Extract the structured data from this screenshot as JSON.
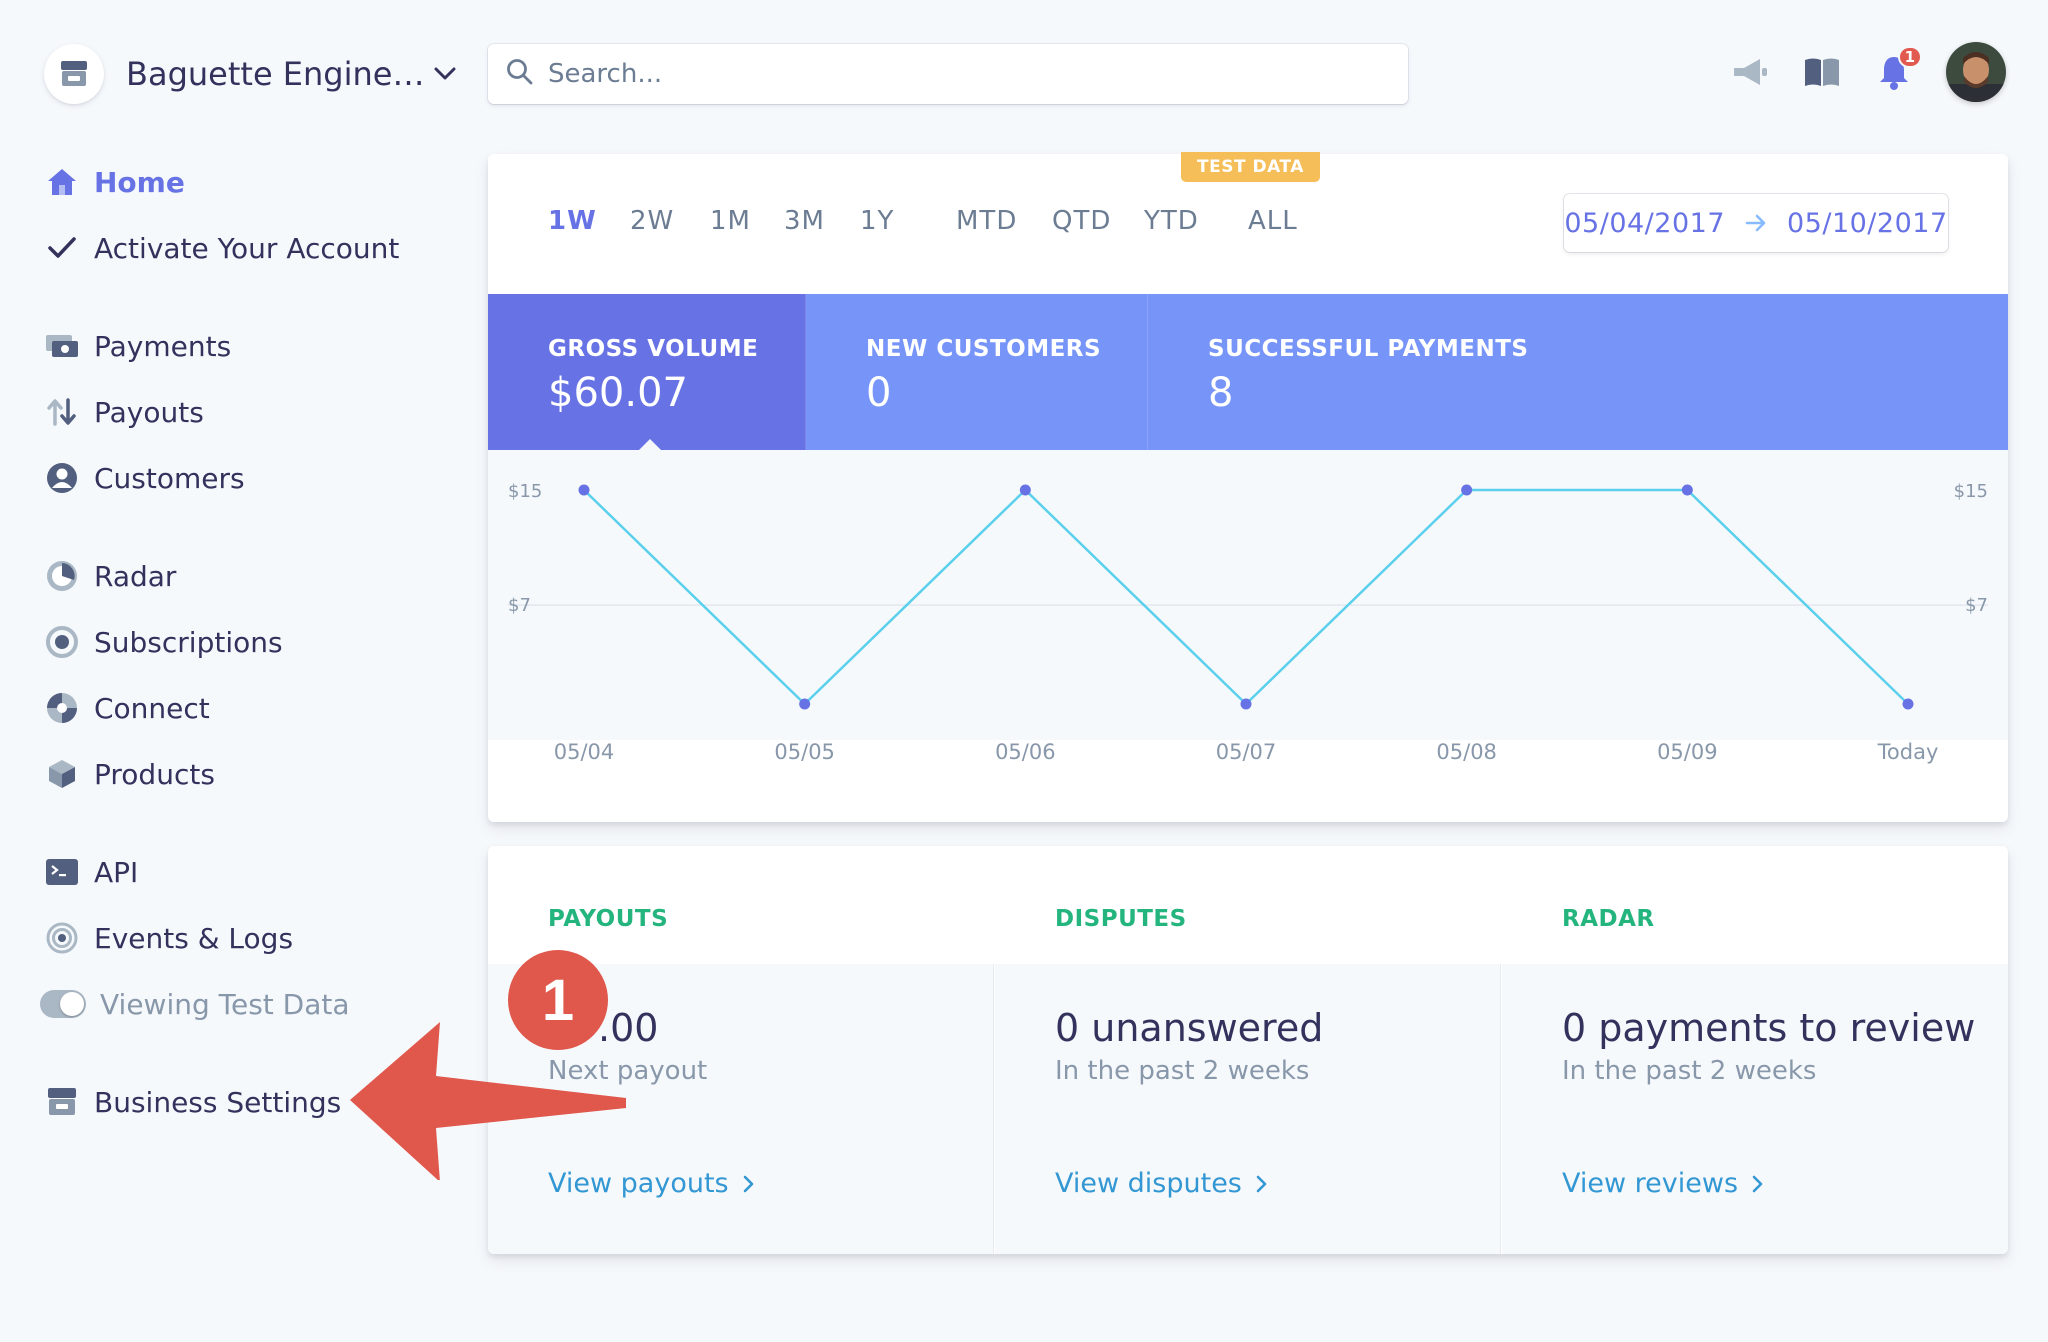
{
  "account": {
    "name": "Baguette Engine…"
  },
  "search": {
    "placeholder": "Search..."
  },
  "notifications": {
    "count": "1"
  },
  "sidebar": {
    "items": [
      {
        "label": "Home",
        "icon": "home-icon"
      },
      {
        "label": "Activate Your Account",
        "icon": "check-icon"
      },
      {
        "label": "Payments",
        "icon": "payments-icon"
      },
      {
        "label": "Payouts",
        "icon": "payouts-icon"
      },
      {
        "label": "Customers",
        "icon": "customers-icon"
      },
      {
        "label": "Radar",
        "icon": "radar-icon"
      },
      {
        "label": "Subscriptions",
        "icon": "subscriptions-icon"
      },
      {
        "label": "Connect",
        "icon": "connect-icon"
      },
      {
        "label": "Products",
        "icon": "products-icon"
      },
      {
        "label": "API",
        "icon": "terminal-icon"
      },
      {
        "label": "Events & Logs",
        "icon": "events-icon"
      },
      {
        "label": "Viewing Test Data",
        "icon": "toggle-icon"
      },
      {
        "label": "Business Settings",
        "icon": "store-icon"
      }
    ]
  },
  "chart_card": {
    "badge": "TEST DATA",
    "ranges": [
      "1W",
      "2W",
      "1M",
      "3M",
      "1Y",
      "MTD",
      "QTD",
      "YTD",
      "ALL"
    ],
    "active_range": "1W",
    "date_from": "05/04/2017",
    "date_to": "05/10/2017",
    "metrics": [
      {
        "label": "GROSS VOLUME",
        "value": "$60.07"
      },
      {
        "label": "NEW CUSTOMERS",
        "value": "0"
      },
      {
        "label": "SUCCESSFUL PAYMENTS",
        "value": "8"
      }
    ]
  },
  "chart_data": {
    "type": "line",
    "x": [
      "05/04",
      "05/05",
      "05/06",
      "05/07",
      "05/08",
      "05/09",
      "Today"
    ],
    "series": [
      {
        "values": [
          15,
          0,
          15,
          0,
          15,
          15,
          0
        ]
      }
    ],
    "ytick_labels": [
      "$15",
      "$7"
    ],
    "yticks": [
      15,
      7
    ],
    "ylim": [
      0,
      15
    ],
    "line_color": "#5bd0ec",
    "point_color": "#6772e5",
    "grid": true
  },
  "summary": [
    {
      "title": "PAYOUTS",
      "value": ".00",
      "sub": "Next payout",
      "link": "View payouts"
    },
    {
      "title": "DISPUTES",
      "value": "0 unanswered",
      "sub": "In the past 2 weeks",
      "link": "View disputes"
    },
    {
      "title": "RADAR",
      "value": "0 payments to review",
      "sub": "In the past 2 weeks",
      "link": "View reviews"
    }
  ],
  "annotation": {
    "step": "1"
  },
  "colors": {
    "accent": "#6772e5",
    "metric_bar": "#7795f8",
    "summary_title": "#24b47e",
    "link": "#3297d3",
    "annotation": "#e0574c",
    "badge": "#f5be58"
  }
}
